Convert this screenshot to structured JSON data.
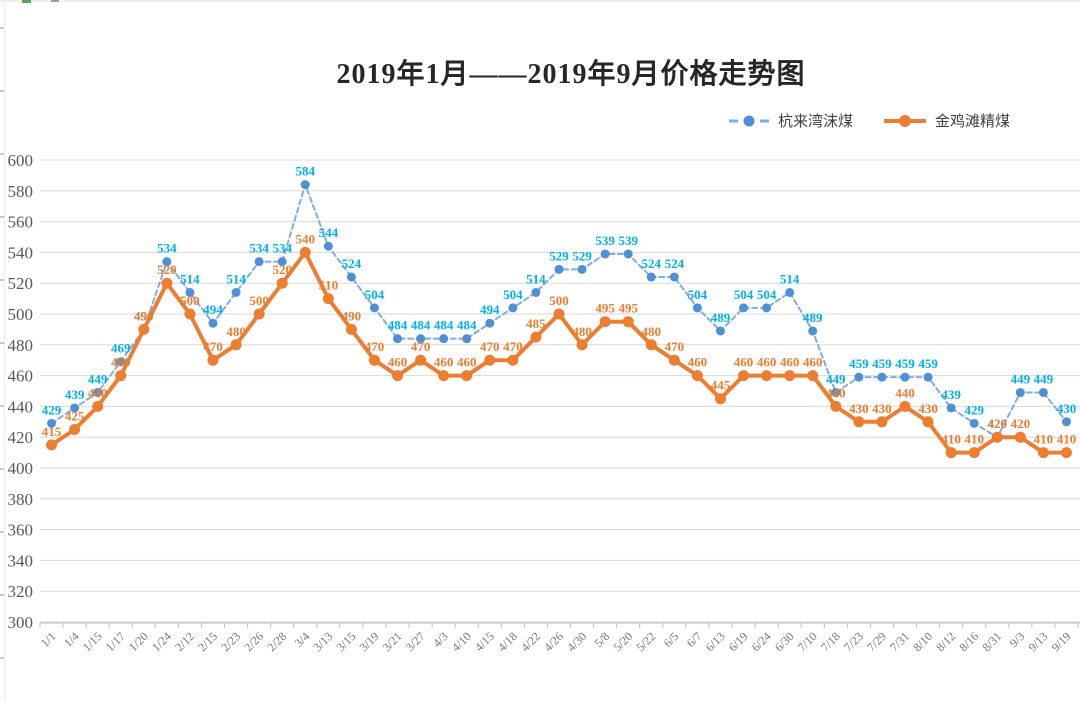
{
  "title": {
    "text": "2019年1月——2019年9月价格走势图"
  },
  "legend": {
    "items": [
      {
        "label": "杭来湾沫煤"
      },
      {
        "label": "金鸡滩精煤"
      }
    ]
  },
  "colors": {
    "series1_marker": "#4F90D5",
    "series1_line": "#7FAEE0",
    "series1_label": "#00B0F0",
    "series2_marker": "#ED7D31",
    "series2_line": "#ED7D31",
    "series2_label": "#ED7D31",
    "grid": "#D9D9D9",
    "axis": "#BFBFBF",
    "tick_label": "#757575"
  },
  "chart_data": {
    "type": "line",
    "title": "2019年1月——2019年9月价格走势图",
    "categories": [
      "1/1",
      "1/4",
      "1/15",
      "1/17",
      "1/20",
      "1/24",
      "2/12",
      "2/15",
      "2/23",
      "2/26",
      "2/28",
      "3/4",
      "3/13",
      "3/15",
      "3/19",
      "3/21",
      "3/27",
      "4/3",
      "4/10",
      "4/15",
      "4/18",
      "4/22",
      "4/26",
      "4/30",
      "5/8",
      "5/20",
      "5/22",
      "6/5",
      "6/7",
      "6/13",
      "6/19",
      "6/24",
      "6/30",
      "7/10",
      "7/18",
      "7/23",
      "7/29",
      "7/31",
      "8/10",
      "8/12",
      "8/16",
      "8/31",
      "9/3",
      "9/13",
      "9/19"
    ],
    "series": [
      {
        "name": "杭来湾沫煤",
        "line_style": "dashed",
        "values": [
          429,
          439,
          449,
          469,
          490,
          534,
          514,
          494,
          514,
          534,
          534,
          584,
          544,
          524,
          504,
          484,
          484,
          484,
          484,
          494,
          504,
          514,
          529,
          529,
          539,
          539,
          524,
          524,
          504,
          489,
          504,
          504,
          514,
          489,
          449,
          459,
          459,
          459,
          459,
          439,
          429,
          420,
          449,
          449,
          430
        ]
      },
      {
        "name": "金鸡滩精煤",
        "line_style": "solid",
        "values": [
          415,
          425,
          440,
          460,
          490,
          520,
          500,
          470,
          480,
          500,
          520,
          540,
          510,
          490,
          470,
          460,
          470,
          460,
          460,
          470,
          470,
          485,
          500,
          480,
          495,
          495,
          480,
          470,
          460,
          445,
          460,
          460,
          460,
          460,
          440,
          430,
          430,
          440,
          430,
          410,
          410,
          420,
          420,
          410,
          410
        ]
      }
    ],
    "ylim": [
      300,
      600
    ],
    "ystep": 20,
    "yticks": [
      300,
      320,
      340,
      360,
      380,
      400,
      420,
      440,
      460,
      480,
      500,
      520,
      540,
      560,
      580,
      600
    ],
    "grid": true,
    "data_labels": true,
    "legend_position": "top-right",
    "xlabel": "",
    "ylabel": ""
  }
}
